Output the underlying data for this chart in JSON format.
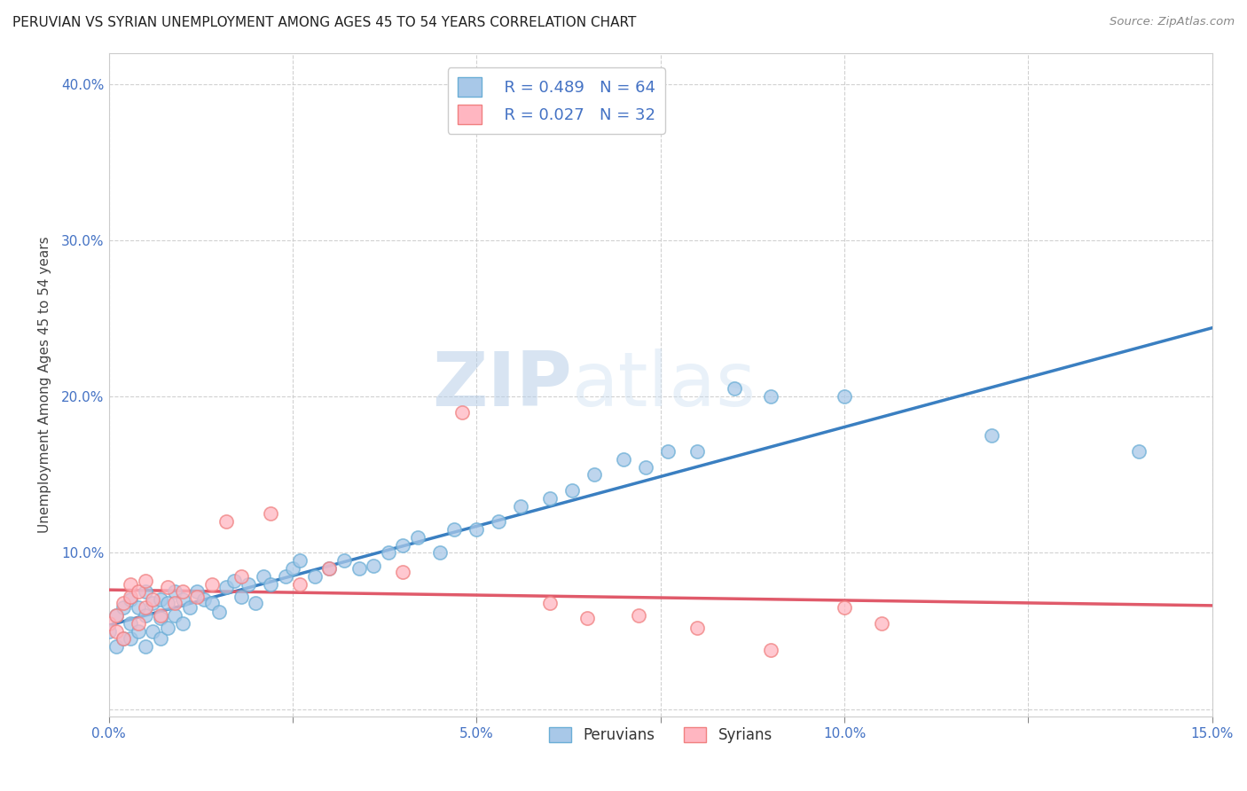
{
  "title": "PERUVIAN VS SYRIAN UNEMPLOYMENT AMONG AGES 45 TO 54 YEARS CORRELATION CHART",
  "source": "Source: ZipAtlas.com",
  "ylabel": "Unemployment Among Ages 45 to 54 years",
  "xlim": [
    0.0,
    0.15
  ],
  "ylim": [
    -0.005,
    0.42
  ],
  "xticks": [
    0.0,
    0.025,
    0.05,
    0.075,
    0.1,
    0.125,
    0.15
  ],
  "xticklabels": [
    "0.0%",
    "",
    "5.0%",
    "",
    "10.0%",
    "",
    "15.0%"
  ],
  "yticks": [
    0.0,
    0.1,
    0.2,
    0.3,
    0.4
  ],
  "yticklabels": [
    "",
    "10.0%",
    "20.0%",
    "30.0%",
    "40.0%"
  ],
  "legend_r_peruvian": "R = 0.489",
  "legend_n_peruvian": "N = 64",
  "legend_r_syrian": "R = 0.027",
  "legend_n_syrian": "N = 32",
  "peruvian_fill_color": "#a8c8e8",
  "peruvian_edge_color": "#6baed6",
  "syrian_fill_color": "#ffb6c1",
  "syrian_edge_color": "#f08080",
  "peruvian_line_color": "#3a7fc1",
  "syrian_line_color": "#e05a6a",
  "watermark_zip": "ZIP",
  "watermark_atlas": "atlas",
  "background_color": "#ffffff",
  "grid_color": "#cccccc",
  "tick_color": "#4472c4",
  "peruvian_scatter_x": [
    0.0,
    0.001,
    0.001,
    0.002,
    0.002,
    0.003,
    0.003,
    0.003,
    0.004,
    0.004,
    0.005,
    0.005,
    0.005,
    0.006,
    0.006,
    0.007,
    0.007,
    0.007,
    0.008,
    0.008,
    0.009,
    0.009,
    0.01,
    0.01,
    0.011,
    0.012,
    0.013,
    0.014,
    0.015,
    0.016,
    0.017,
    0.018,
    0.019,
    0.02,
    0.021,
    0.022,
    0.024,
    0.025,
    0.026,
    0.028,
    0.03,
    0.032,
    0.034,
    0.036,
    0.038,
    0.04,
    0.042,
    0.045,
    0.047,
    0.05,
    0.053,
    0.056,
    0.06,
    0.063,
    0.066,
    0.07,
    0.073,
    0.076,
    0.08,
    0.085,
    0.09,
    0.1,
    0.12,
    0.14
  ],
  "peruvian_scatter_y": [
    0.05,
    0.04,
    0.06,
    0.045,
    0.065,
    0.045,
    0.055,
    0.07,
    0.05,
    0.065,
    0.04,
    0.06,
    0.075,
    0.05,
    0.068,
    0.045,
    0.058,
    0.07,
    0.052,
    0.068,
    0.06,
    0.075,
    0.055,
    0.07,
    0.065,
    0.075,
    0.07,
    0.068,
    0.062,
    0.078,
    0.082,
    0.072,
    0.08,
    0.068,
    0.085,
    0.08,
    0.085,
    0.09,
    0.095,
    0.085,
    0.09,
    0.095,
    0.09,
    0.092,
    0.1,
    0.105,
    0.11,
    0.1,
    0.115,
    0.115,
    0.12,
    0.13,
    0.135,
    0.14,
    0.15,
    0.16,
    0.155,
    0.165,
    0.165,
    0.205,
    0.2,
    0.2,
    0.175,
    0.165
  ],
  "syrian_scatter_x": [
    0.0,
    0.001,
    0.001,
    0.002,
    0.002,
    0.003,
    0.003,
    0.004,
    0.004,
    0.005,
    0.005,
    0.006,
    0.007,
    0.008,
    0.009,
    0.01,
    0.012,
    0.014,
    0.016,
    0.018,
    0.022,
    0.026,
    0.03,
    0.04,
    0.048,
    0.06,
    0.065,
    0.072,
    0.08,
    0.09,
    0.1,
    0.105
  ],
  "syrian_scatter_y": [
    0.055,
    0.06,
    0.05,
    0.068,
    0.045,
    0.072,
    0.08,
    0.055,
    0.075,
    0.065,
    0.082,
    0.07,
    0.06,
    0.078,
    0.068,
    0.075,
    0.072,
    0.08,
    0.12,
    0.085,
    0.125,
    0.08,
    0.09,
    0.088,
    0.19,
    0.068,
    0.058,
    0.06,
    0.052,
    0.038,
    0.065,
    0.055
  ]
}
